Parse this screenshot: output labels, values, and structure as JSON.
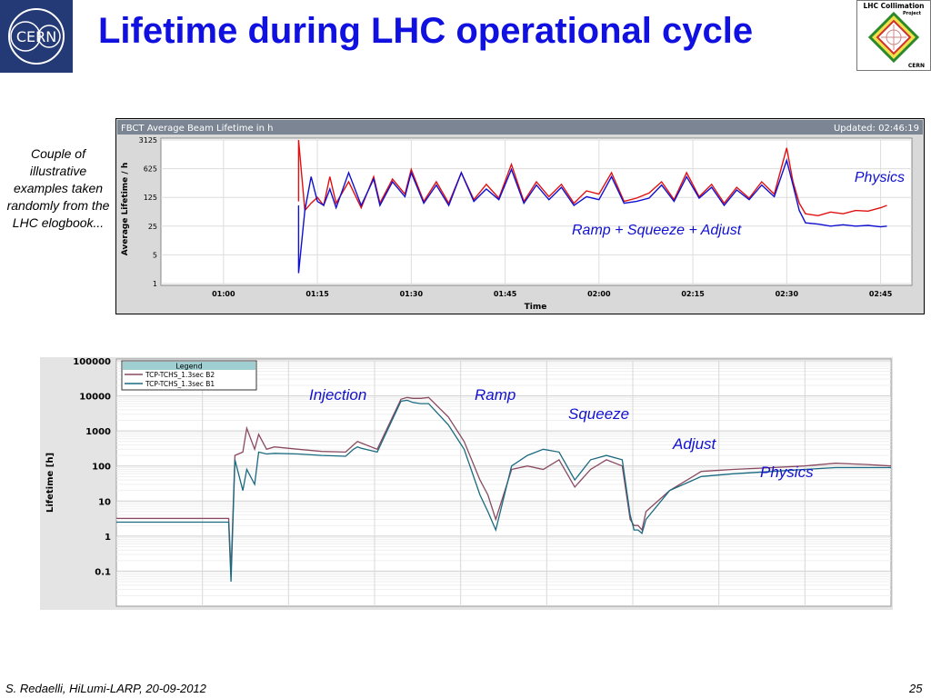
{
  "slide": {
    "title": "Lifetime during LHC operational cycle",
    "side_note": "Couple of illustrative examples taken randomly from the LHC elogbook...",
    "footer_left": "S. Redaelli, HiLumi-LARP, 20-09-2012",
    "page_number": "25",
    "logo_left": "CERN",
    "logo_right_line1": "LHC Collimation",
    "logo_right_line2": "Project",
    "logo_right_line3": "CERN"
  },
  "chart_data": [
    {
      "type": "line",
      "title": "FBCT Average Beam Lifetime in h",
      "updated_label": "Updated: 02:46:19",
      "xlabel": "Time",
      "ylabel": "Average Lifetime / h",
      "y_scale": "log",
      "ylim": [
        1,
        3125
      ],
      "y_ticks": [
        1,
        5,
        25,
        125,
        625,
        3125
      ],
      "x_ticks": [
        "01:00",
        "01:15",
        "01:30",
        "01:45",
        "02:00",
        "02:15",
        "02:30",
        "02:45"
      ],
      "grid": true,
      "colors": {
        "beam_red": "#e01010",
        "beam_blue": "#1010d0",
        "header_bg": "#7b8593"
      },
      "annotations": [
        "Physics",
        "Ramp + Squeeze + Adjust"
      ],
      "series": [
        {
          "color": "#e01010",
          "x": [
            "01:12",
            "01:12",
            "01:13",
            "01:14",
            "01:15",
            "01:16",
            "01:17",
            "01:18",
            "01:20",
            "01:22",
            "01:24",
            "01:25",
            "01:27",
            "01:29",
            "01:30",
            "01:32",
            "01:34",
            "01:36",
            "01:38",
            "01:40",
            "01:42",
            "01:44",
            "01:46",
            "01:48",
            "01:50",
            "01:52",
            "01:54",
            "01:56",
            "01:58",
            "02:00",
            "02:02",
            "02:04",
            "02:06",
            "02:08",
            "02:10",
            "02:12",
            "02:14",
            "02:16",
            "02:18",
            "02:20",
            "02:22",
            "02:24",
            "02:26",
            "02:28",
            "02:30",
            "02:31",
            "02:32",
            "02:33",
            "02:35",
            "02:37",
            "02:39",
            "02:41",
            "02:43",
            "02:45",
            "02:46"
          ],
          "y": [
            100,
            3125,
            60,
            90,
            125,
            80,
            400,
            90,
            300,
            70,
            400,
            90,
            350,
            150,
            600,
            100,
            300,
            90,
            500,
            110,
            260,
            120,
            800,
            100,
            300,
            130,
            260,
            90,
            180,
            150,
            500,
            100,
            120,
            160,
            300,
            110,
            500,
            130,
            260,
            90,
            220,
            120,
            300,
            150,
            2000,
            300,
            90,
            50,
            45,
            55,
            50,
            60,
            58,
            70,
            80
          ]
        },
        {
          "color": "#1010d0",
          "x": [
            "01:12",
            "01:12",
            "01:13",
            "01:14",
            "01:15",
            "01:16",
            "01:17",
            "01:18",
            "01:20",
            "01:22",
            "01:24",
            "01:25",
            "01:27",
            "01:29",
            "01:30",
            "01:32",
            "01:34",
            "01:36",
            "01:38",
            "01:40",
            "01:42",
            "01:44",
            "01:46",
            "01:48",
            "01:50",
            "01:52",
            "01:54",
            "01:56",
            "01:58",
            "02:00",
            "02:02",
            "02:04",
            "02:06",
            "02:08",
            "02:10",
            "02:12",
            "02:14",
            "02:16",
            "02:18",
            "02:20",
            "02:22",
            "02:24",
            "02:26",
            "02:28",
            "02:30",
            "02:31",
            "02:32",
            "02:33",
            "02:35",
            "02:37",
            "02:39",
            "02:41",
            "02:43",
            "02:45",
            "02:46"
          ],
          "y": [
            80,
            1.8,
            60,
            400,
            100,
            80,
            200,
            70,
            500,
            80,
            350,
            80,
            300,
            130,
            500,
            90,
            250,
            80,
            500,
            100,
            200,
            110,
            600,
            90,
            250,
            110,
            220,
            80,
            130,
            110,
            400,
            90,
            100,
            120,
            250,
            100,
            400,
            120,
            220,
            80,
            190,
            110,
            250,
            130,
            1000,
            250,
            60,
            30,
            28,
            25,
            27,
            25,
            26,
            24,
            25
          ]
        }
      ]
    },
    {
      "type": "line",
      "ylabel": "Lifetime [h]",
      "y_scale": "log",
      "ylim": [
        0.01,
        100000
      ],
      "y_ticks": [
        "100000",
        "10000",
        "1000",
        "100",
        "10",
        "1",
        "0.1"
      ],
      "legend_title": "Legend",
      "legend_placement": "top-left",
      "grid": true,
      "colors": {
        "b2": "#8a4a62",
        "b1": "#1a6a80",
        "legend_bg": "#9fcfd0"
      },
      "annotations": [
        "Injection",
        "Ramp",
        "Squeeze",
        "Adjust",
        "Physics"
      ],
      "series": [
        {
          "name": "TCP-TCHS_1.3sec B2",
          "color": "#8a4a62",
          "x": [
            0,
            140,
            142,
            145,
            150,
            160,
            165,
            175,
            180,
            190,
            200,
            230,
            260,
            290,
            300,
            305,
            310,
            330,
            360,
            368,
            375,
            385,
            395,
            420,
            440,
            460,
            470,
            480,
            500,
            520,
            540,
            560,
            580,
            600,
            620,
            640,
            650,
            655,
            660,
            665,
            670,
            700,
            740,
            780,
            830,
            870,
            910,
            950,
            980
          ],
          "y": [
            3.2,
            3.2,
            3.2,
            0.1,
            200,
            250,
            1200,
            300,
            800,
            300,
            350,
            300,
            260,
            250,
            400,
            500,
            450,
            300,
            8000,
            9000,
            8500,
            8500,
            9000,
            2500,
            500,
            40,
            15,
            3,
            80,
            100,
            80,
            150,
            25,
            80,
            150,
            100,
            3,
            2,
            2,
            1.5,
            5,
            20,
            70,
            80,
            90,
            100,
            120,
            110,
            100
          ]
        },
        {
          "name": "TCP-TCHS_1.3sec B1",
          "color": "#1a6a80",
          "x": [
            0,
            140,
            142,
            145,
            150,
            160,
            165,
            175,
            180,
            190,
            200,
            230,
            260,
            290,
            300,
            305,
            310,
            330,
            360,
            368,
            375,
            385,
            395,
            420,
            440,
            460,
            470,
            480,
            500,
            520,
            540,
            560,
            580,
            600,
            620,
            640,
            650,
            655,
            660,
            665,
            670,
            700,
            740,
            780,
            830,
            870,
            910,
            950,
            980
          ],
          "y": [
            2.5,
            2.5,
            2.5,
            0.05,
            150,
            20,
            80,
            30,
            250,
            220,
            230,
            220,
            200,
            190,
            300,
            350,
            320,
            250,
            7000,
            7500,
            6500,
            6000,
            6000,
            1500,
            300,
            15,
            5,
            1.5,
            100,
            200,
            300,
            250,
            40,
            150,
            200,
            150,
            4,
            1.5,
            1.5,
            1.2,
            3,
            20,
            50,
            60,
            70,
            80,
            90,
            90,
            90
          ]
        }
      ]
    }
  ]
}
